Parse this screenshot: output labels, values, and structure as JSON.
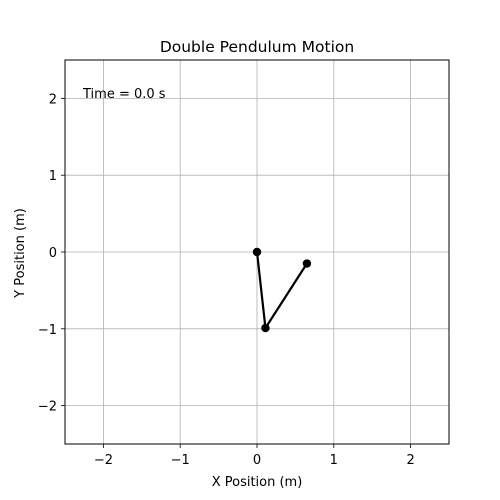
{
  "chart_data": {
    "type": "line",
    "title": "Double Pendulum Motion",
    "xlabel": "X Position (m)",
    "ylabel": "Y Position (m)",
    "xlim": [
      -2.5,
      2.5
    ],
    "ylim": [
      -2.5,
      2.5
    ],
    "xticks": [
      -2,
      -1,
      0,
      1,
      2
    ],
    "yticks": [
      -2,
      -1,
      0,
      1,
      2
    ],
    "xtick_labels": [
      "−2",
      "−1",
      "0",
      "1",
      "2"
    ],
    "ytick_labels": [
      "−2",
      "−1",
      "0",
      "1",
      "2"
    ],
    "grid": true,
    "annotation": "Time = 0.0 s",
    "series": [
      {
        "x": [
          0,
          0.11,
          0.65
        ],
        "y": [
          0,
          -0.99,
          -0.15
        ],
        "color": "#000000",
        "marker": "circle"
      }
    ]
  }
}
